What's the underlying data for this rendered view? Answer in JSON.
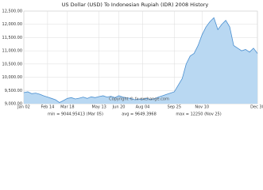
{
  "chart_data": {
    "type": "area",
    "title": "US Dollar (USD) To Indonesian Rupiah (IDR) 2008 History",
    "categories": [
      "Jan 02",
      null,
      null,
      null,
      null,
      null,
      "Feb 14",
      null,
      null,
      null,
      null,
      "Mar 18",
      null,
      null,
      null,
      null,
      null,
      null,
      null,
      "May 13",
      null,
      null,
      null,
      null,
      "Jun 20",
      null,
      null,
      null,
      null,
      null,
      "Aug 04",
      null,
      null,
      null,
      null,
      null,
      null,
      null,
      "Sep 25",
      null,
      null,
      null,
      null,
      null,
      null,
      "Nov 10",
      null,
      null,
      null,
      null,
      null,
      null,
      null,
      null,
      null,
      null,
      null,
      null,
      null,
      "Dec 30"
    ],
    "values": [
      9420,
      9450,
      9380,
      9400,
      9360,
      9300,
      9250,
      9200,
      9150,
      9045,
      9120,
      9200,
      9230,
      9180,
      9210,
      9250,
      9200,
      9260,
      9230,
      9270,
      9300,
      9250,
      9280,
      9230,
      9300,
      9250,
      9220,
      9200,
      9150,
      9180,
      9170,
      9200,
      9160,
      9190,
      9250,
      9300,
      9350,
      9400,
      9450,
      9700,
      9950,
      10500,
      10800,
      10900,
      11200,
      11600,
      11900,
      12100,
      12250,
      11800,
      12000,
      12150,
      11900,
      11200,
      11100,
      11000,
      11050,
      10950,
      11100,
      10900
    ],
    "color": "#4a8fd0",
    "fill": "#b9d8f2",
    "ylim": [
      9000,
      12500
    ],
    "yticks": [
      {
        "value": 9000,
        "label": "9,000.00"
      },
      {
        "value": 9500,
        "label": "9,500.00"
      },
      {
        "value": 10000,
        "label": "10,000.00"
      },
      {
        "value": 10500,
        "label": "10,500.00"
      },
      {
        "value": 11000,
        "label": "11,000.00"
      },
      {
        "value": 11500,
        "label": "11,500.00"
      },
      {
        "value": 12000,
        "label": "12,000.00"
      },
      {
        "value": 12500,
        "label": "12,500.00"
      }
    ],
    "grid": true,
    "watermark": "Copyright © fx-exchange.com",
    "footer": [
      "min = 9044.95413 (Mar 05)",
      "avg = 9649.3968",
      "max = 12250 (Nov 25)"
    ]
  }
}
